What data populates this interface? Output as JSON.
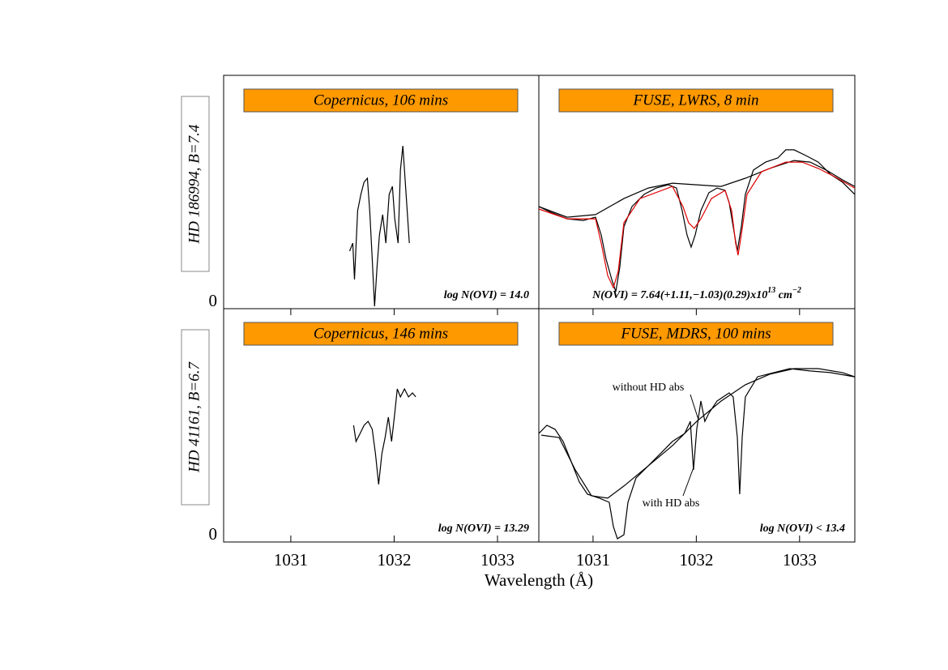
{
  "chart_data": [
    {
      "type": "line",
      "title": "Copernicus, 106 mins",
      "ylabel": "HD 186994, B=7.4",
      "annotation": [
        "log N(OVI) = 14.0"
      ],
      "xlim": [
        1030.35,
        1033.4
      ],
      "ylim": [
        0,
        10
      ],
      "yticks": [
        0
      ],
      "series": [
        {
          "color": "#000000",
          "x": [
            1031.569,
            1031.6,
            1031.616,
            1031.647,
            1031.678,
            1031.709,
            1031.741,
            1031.764,
            1031.788,
            1031.811,
            1031.834,
            1031.858,
            1031.889,
            1031.92,
            1031.952,
            1031.983,
            1032.006,
            1032.038,
            1032.061,
            1032.084,
            1032.116,
            1032.147
          ],
          "values": [
            2.47,
            2.81,
            1.25,
            4.2,
            4.9,
            5.42,
            5.59,
            4.2,
            2.12,
            0.1,
            1.77,
            3.16,
            4.03,
            2.81,
            4.9,
            5.24,
            3.85,
            2.81,
            5.94,
            6.98,
            4.9,
            2.81
          ]
        }
      ]
    },
    {
      "type": "line",
      "title": "FUSE, LWRS, 8 min",
      "annotation": [
        "N(OVI) = 7.64(+1.11,−1.03)(0.29)x10",
        "13",
        " cm",
        "−2"
      ],
      "xlim": [
        1030.475,
        1033.535
      ],
      "ylim": [
        0,
        10
      ],
      "series": [
        {
          "color": "#000000",
          "x": [
            1030.475,
            1030.593,
            1030.75,
            1030.906,
            1031.024,
            1031.079,
            1031.126,
            1031.181,
            1031.22,
            1031.259,
            1031.299,
            1031.377,
            1031.495,
            1031.612,
            1031.73,
            1031.808,
            1031.863,
            1031.91,
            1031.95,
            1031.989,
            1032.044,
            1032.122,
            1032.2,
            1032.279,
            1032.318,
            1032.357,
            1032.397,
            1032.436,
            1032.475,
            1032.553,
            1032.671,
            1032.789,
            1032.867,
            1032.946,
            1033.063,
            1033.181,
            1033.299,
            1033.416,
            1033.534
          ],
          "values": [
            4.38,
            4.13,
            3.85,
            3.78,
            3.92,
            3.16,
            2.12,
            1.25,
            0.73,
            1.77,
            3.51,
            4.38,
            4.9,
            5.17,
            5.31,
            5.17,
            4.2,
            3.16,
            2.64,
            3.16,
            4.2,
            4.97,
            5.17,
            5.07,
            4.55,
            3.51,
            2.47,
            3.51,
            4.9,
            5.94,
            6.28,
            6.46,
            6.81,
            6.81,
            6.56,
            6.28,
            5.76,
            5.42,
            4.9
          ]
        },
        {
          "color": "#000000",
          "x": [
            1030.475,
            1030.75,
            1031.024,
            1031.299,
            1031.534,
            1031.769,
            1032.004,
            1032.24,
            1032.475,
            1032.71,
            1032.946,
            1033.102,
            1033.259,
            1033.416,
            1033.534
          ],
          "values": [
            4.38,
            3.92,
            4.03,
            4.72,
            5.17,
            5.38,
            5.31,
            5.24,
            5.59,
            6.01,
            6.35,
            6.28,
            5.94,
            5.52,
            5.24
          ]
        },
        {
          "color": "#e00000",
          "x": [
            1030.475,
            1030.75,
            1031.024,
            1031.079,
            1031.142,
            1031.197,
            1031.244,
            1031.299,
            1031.455,
            1031.769,
            1031.871,
            1031.926,
            1031.981,
            1032.044,
            1032.146,
            1032.279,
            1032.342,
            1032.381,
            1032.404,
            1032.436,
            1032.491,
            1032.632,
            1032.867,
            1033.024,
            1033.181,
            1033.338,
            1033.534
          ],
          "values": [
            4.27,
            3.85,
            3.85,
            2.81,
            1.42,
            0.9,
            1.6,
            3.68,
            4.72,
            5.24,
            4.38,
            3.68,
            3.44,
            3.85,
            4.72,
            5.07,
            4.2,
            2.81,
            2.29,
            3.16,
            4.9,
            5.87,
            6.28,
            6.28,
            6.01,
            5.66,
            5.17
          ]
        }
      ]
    },
    {
      "type": "line",
      "title": "Copernicus, 146 mins",
      "ylabel": "HD 41161, B=6.7",
      "annotation": [
        "log N(OVI) = 13.29"
      ],
      "xlabel": "Wavelength (Å)",
      "xlim": [
        1030.35,
        1033.4
      ],
      "xticks": [
        1031,
        1032,
        1033
      ],
      "ylim": [
        0,
        10
      ],
      "yticks": [
        0
      ],
      "series": [
        {
          "color": "#000000",
          "x": [
            1031.608,
            1031.631,
            1031.67,
            1031.709,
            1031.748,
            1031.788,
            1031.819,
            1031.85,
            1031.881,
            1031.913,
            1031.944,
            1031.975,
            1032.006,
            1032.03,
            1032.061,
            1032.1,
            1032.139,
            1032.178,
            1032.209
          ],
          "values": [
            5.0,
            4.31,
            4.65,
            5.0,
            5.17,
            4.83,
            3.78,
            2.47,
            3.78,
            4.48,
            5.35,
            4.31,
            5.52,
            6.56,
            6.22,
            6.56,
            6.22,
            6.39,
            6.22
          ]
        }
      ]
    },
    {
      "type": "line",
      "title": "FUSE, MDRS, 100 mins",
      "annotation": [
        "log N(OVI) < 13.4"
      ],
      "notes": [
        "without HD abs",
        "with HD abs"
      ],
      "xlim": [
        1030.475,
        1033.535
      ],
      "xticks": [
        1031,
        1032,
        1033
      ],
      "ylim": [
        0,
        10
      ],
      "series": [
        {
          "color": "#000000",
          "x": [
            1030.475,
            1030.553,
            1030.632,
            1030.71,
            1030.789,
            1030.867,
            1030.946,
            1031.063,
            1031.157,
            1031.197,
            1031.236,
            1031.299,
            1031.338,
            1031.416,
            1031.534,
            1031.651,
            1031.769,
            1031.887,
            1031.942,
            1031.973,
            1032.004,
            1032.044,
            1032.083,
            1032.122,
            1032.2,
            1032.318,
            1032.357,
            1032.397,
            1032.42,
            1032.444,
            1032.475,
            1032.593,
            1032.75,
            1032.906,
            1033.102,
            1033.299,
            1033.534
          ],
          "values": [
            4.65,
            5.0,
            4.83,
            4.31,
            3.44,
            2.57,
            2.05,
            1.88,
            1.7,
            0.66,
            0.14,
            0.31,
            1.7,
            2.74,
            3.26,
            3.78,
            4.31,
            4.65,
            5.17,
            3.09,
            4.83,
            6.04,
            5.17,
            5.52,
            6.04,
            6.39,
            6.22,
            4.48,
            2.05,
            4.48,
            6.22,
            7.08,
            7.26,
            7.43,
            7.33,
            7.26,
            7.08
          ]
        },
        {
          "color": "#000000",
          "x": [
            1030.499,
            1030.671,
            1030.828,
            1030.985,
            1031.142,
            1031.299,
            1031.534,
            1031.769,
            1032.004,
            1032.24,
            1032.475,
            1032.71,
            1032.946,
            1033.181,
            1033.416,
            1033.534
          ],
          "values": [
            4.58,
            4.48,
            3.09,
            1.98,
            1.88,
            2.4,
            3.26,
            4.13,
            5.17,
            6.04,
            6.74,
            7.19,
            7.43,
            7.43,
            7.26,
            7.08
          ]
        }
      ]
    }
  ]
}
